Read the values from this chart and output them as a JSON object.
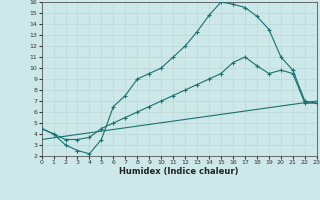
{
  "xlabel": "Humidex (Indice chaleur)",
  "background_color": "#cce8e8",
  "grid_color": "#b0d0d0",
  "line_color": "#1a7070",
  "xlim": [
    0,
    23
  ],
  "ylim": [
    2,
    16
  ],
  "xticks": [
    0,
    1,
    2,
    3,
    4,
    5,
    6,
    7,
    8,
    9,
    10,
    11,
    12,
    13,
    14,
    15,
    16,
    17,
    18,
    19,
    20,
    21,
    22,
    23
  ],
  "yticks": [
    2,
    3,
    4,
    5,
    6,
    7,
    8,
    9,
    10,
    11,
    12,
    13,
    14,
    15,
    16
  ],
  "line1_x": [
    0,
    1,
    2,
    3,
    4,
    5,
    6,
    7,
    8,
    9,
    10,
    11,
    12,
    13,
    14,
    15,
    16,
    17,
    18,
    19,
    20,
    21,
    22,
    23
  ],
  "line1_y": [
    4.5,
    4.0,
    3.0,
    2.5,
    2.2,
    3.5,
    6.5,
    7.5,
    9.0,
    9.5,
    10.0,
    11.0,
    12.0,
    13.3,
    14.8,
    16.0,
    15.8,
    15.5,
    14.7,
    13.5,
    11.0,
    9.8,
    7.0,
    6.8
  ],
  "line2_x": [
    0,
    1,
    2,
    3,
    4,
    5,
    6,
    7,
    8,
    9,
    10,
    11,
    12,
    13,
    14,
    15,
    16,
    17,
    18,
    19,
    20,
    21,
    22,
    23
  ],
  "line2_y": [
    4.5,
    4.0,
    3.5,
    3.5,
    3.7,
    4.5,
    5.0,
    5.5,
    6.0,
    6.5,
    7.0,
    7.5,
    8.0,
    8.5,
    9.0,
    9.5,
    10.5,
    11.0,
    10.2,
    9.5,
    9.8,
    9.5,
    6.8,
    6.8
  ],
  "line3_x": [
    0,
    23
  ],
  "line3_y": [
    3.5,
    7.0
  ]
}
